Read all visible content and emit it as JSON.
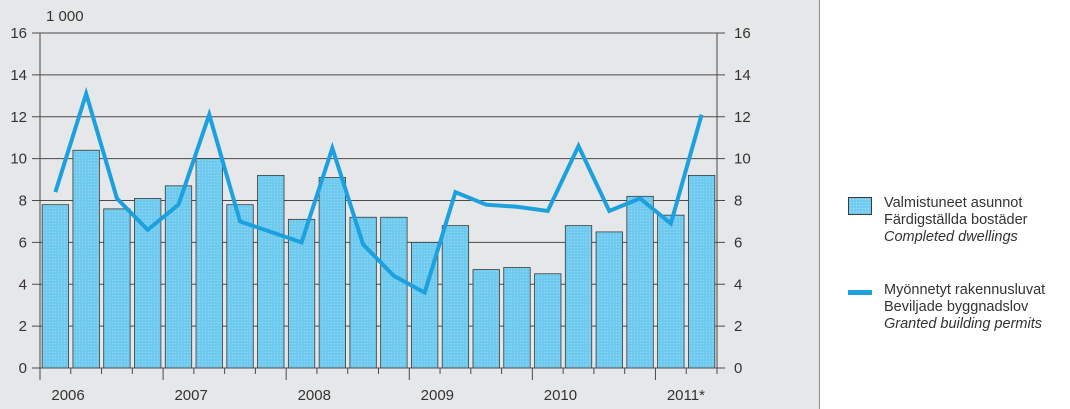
{
  "colors": {
    "panel_bg": "#e6e7e8",
    "bar_fill": "#6fcaf0",
    "bar_border": "#3a3a3a",
    "line": "#1da1de",
    "grid": "#4a4a4a",
    "text": "#333333"
  },
  "legend": {
    "bars": {
      "fi": "Valmistuneet asunnot",
      "sv": "Färdigställda bostäder",
      "en": "Completed dwellings"
    },
    "line": {
      "fi": "Myönnetyt rakennusluvat",
      "sv": "Beviljade byggnadslov",
      "en": "Granted building permits"
    }
  },
  "chart_data": {
    "type": "bar",
    "unit_label": "1 000",
    "ylim": [
      0,
      16
    ],
    "y_ticks": [
      0,
      2,
      4,
      6,
      8,
      10,
      12,
      14,
      16
    ],
    "grid": true,
    "legend_position": "right",
    "year_labels": [
      "2006",
      "2007",
      "2008",
      "2009",
      "2010",
      "2011*"
    ],
    "quarters_per_year": 4,
    "series": [
      {
        "name": "Valmistuneet asunnot / Färdigställda bostäder / Completed dwellings",
        "type": "bar",
        "values": [
          7.8,
          10.4,
          7.6,
          8.1,
          8.7,
          10.0,
          7.8,
          9.2,
          7.1,
          9.1,
          7.2,
          7.2,
          6.0,
          6.8,
          4.7,
          4.8,
          4.5,
          6.8,
          6.5,
          8.2,
          7.3,
          9.2
        ]
      },
      {
        "name": "Myönnetyt rakennusluvat / Beviljade byggnadslov / Granted building permits",
        "type": "line",
        "values": [
          8.4,
          13.1,
          8.1,
          6.6,
          7.8,
          12.1,
          7.0,
          6.5,
          6.0,
          10.5,
          5.9,
          4.4,
          3.6,
          8.4,
          7.8,
          7.7,
          7.5,
          10.6,
          7.5,
          8.1,
          6.9,
          12.1
        ]
      }
    ]
  }
}
